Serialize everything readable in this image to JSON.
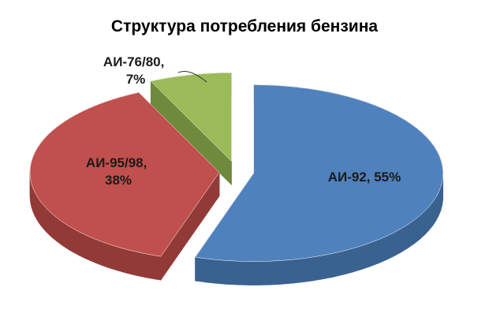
{
  "chart_data": {
    "type": "pie",
    "title": "Структура потребления бензина",
    "labels": [
      "АИ-92, 55%",
      "АИ-95/98, 38%",
      "АИ-76/80, 7%"
    ],
    "values": [
      55,
      38,
      7
    ],
    "colors": [
      "#4f81bd",
      "#c0504d",
      "#9bbb59"
    ],
    "side_colors": [
      "#3a6290",
      "#923a37",
      "#6f8a3c"
    ]
  }
}
